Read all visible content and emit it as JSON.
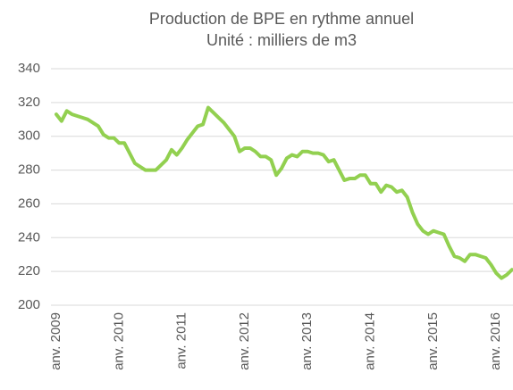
{
  "chart_data": {
    "type": "line",
    "title": "Production  de BPE  en rythme annuel",
    "subtitle": "Unité : milliers de m3",
    "categories": [
      "anv. 2009",
      null,
      null,
      null,
      null,
      null,
      null,
      null,
      null,
      null,
      null,
      null,
      "anv. 2010",
      null,
      null,
      null,
      null,
      null,
      null,
      null,
      null,
      null,
      null,
      null,
      "anv. 2011",
      null,
      null,
      null,
      null,
      null,
      null,
      null,
      null,
      null,
      null,
      null,
      "anv. 2012",
      null,
      null,
      null,
      null,
      null,
      null,
      null,
      null,
      null,
      null,
      null,
      "anv. 2013",
      null,
      null,
      null,
      null,
      null,
      null,
      null,
      null,
      null,
      null,
      null,
      "anv. 2014",
      null,
      null,
      null,
      null,
      null,
      null,
      null,
      null,
      null,
      null,
      null,
      "anv. 2015",
      null,
      null,
      null,
      null,
      null,
      null,
      null,
      null,
      null,
      null,
      null,
      "anv. 2016",
      null,
      null,
      null
    ],
    "series": [
      {
        "color": "#92d050",
        "values": [
          313,
          309,
          315,
          313,
          312,
          311,
          310,
          308,
          306,
          301,
          299,
          299,
          296,
          296,
          290,
          284,
          282,
          280,
          280,
          280,
          283,
          286,
          292,
          289,
          293,
          298,
          302,
          306,
          307,
          317,
          314,
          311,
          308,
          304,
          300,
          291,
          293,
          293,
          291,
          288,
          288,
          286,
          277,
          281,
          287,
          289,
          288,
          291,
          291,
          290,
          290,
          289,
          285,
          286,
          280,
          274,
          275,
          275,
          277,
          277,
          272,
          272,
          267,
          271,
          270,
          267,
          268,
          264,
          255,
          248,
          244,
          242,
          244,
          243,
          242,
          235,
          229,
          228,
          226,
          230,
          230,
          229,
          228,
          224,
          219,
          216,
          218,
          221
        ]
      }
    ],
    "ylim": [
      200,
      340
    ],
    "yticks": [
      200,
      220,
      240,
      260,
      280,
      300,
      320,
      340
    ],
    "grid": true
  }
}
